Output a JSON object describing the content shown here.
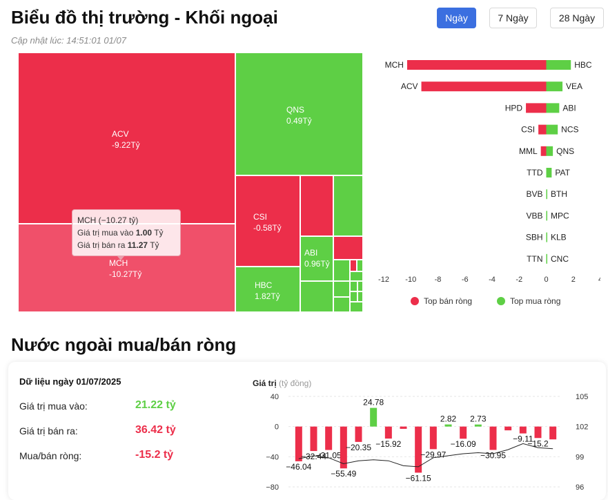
{
  "header": {
    "title": "Biểu đồ thị trường - Khối ngoại",
    "updated": "Cập nhật lúc: 14:51:01 01/07",
    "tabs": [
      "Ngày",
      "7 Ngày",
      "28 Ngày"
    ],
    "active_tab": "Ngày"
  },
  "treemap": {
    "tiles": [
      {
        "label": "ACV",
        "value": "-9.22Tỷ",
        "color": "#ec2e4a"
      },
      {
        "label": "MCH",
        "value": "-10.27Tỷ",
        "color": "#f0506a"
      },
      {
        "label": "QNS",
        "value": "0.49Tỷ",
        "color": "#5ecf45"
      },
      {
        "label": "CSI",
        "value": "-0.58Tỷ",
        "color": "#ec2e4a"
      },
      {
        "label": "ABI",
        "value": "0.96Tỷ",
        "color": "#5ecf45"
      },
      {
        "label": "HBC",
        "value": "1.82Tỷ",
        "color": "#5ecf45"
      }
    ],
    "tooltip": {
      "title": "MCH (−10.27 tỷ)",
      "buy_label": "Giá trị mua vào",
      "buy_value": "1.00",
      "buy_unit": "Tỷ",
      "sell_label": "Giá trị bán ra",
      "sell_value": "11.27",
      "sell_unit": "Tỷ"
    }
  },
  "chart_data": [
    {
      "type": "bar",
      "orientation": "horizontal",
      "sell_categories": [
        "MCH",
        "ACV",
        "HPD",
        "CSI",
        "MML",
        "TTD",
        "BVB",
        "VBB",
        "SBH",
        "TTN"
      ],
      "sell_values": [
        -10.27,
        -9.22,
        -1.5,
        -0.58,
        -0.4,
        0,
        0,
        0,
        0,
        0
      ],
      "buy_categories": [
        "HBC",
        "VEA",
        "ABI",
        "NCS",
        "QNS",
        "PAT",
        "BTH",
        "MPC",
        "KLB",
        "CNC"
      ],
      "buy_values": [
        1.82,
        1.2,
        0.96,
        0.85,
        0.49,
        0.4,
        0.05,
        0.02,
        0.02,
        0.02
      ],
      "xlim": [
        -12,
        4
      ],
      "xticks": [
        "-12",
        "-10",
        "-8",
        "-6",
        "-4",
        "-2",
        "0",
        "2",
        "4"
      ],
      "legend": [
        {
          "name": "Top bán ròng",
          "color": "#ec2e4a"
        },
        {
          "name": "Top mua ròng",
          "color": "#5ecf45"
        }
      ]
    },
    {
      "type": "bar",
      "ylabel": "Giá trị",
      "yunit": "(tỷ đồng)",
      "yticks_left": [
        "40",
        "0",
        "−40",
        "−80"
      ],
      "yticks_right": [
        "105",
        "102",
        "99",
        "96"
      ],
      "ylim": [
        -80,
        40
      ],
      "values": [
        -46.04,
        -32.44,
        -31.05,
        -55.49,
        -20.35,
        24.78,
        -15.92,
        -3,
        -61.15,
        -29.97,
        2.82,
        -16.09,
        2.73,
        -30.95,
        -5,
        -9.11,
        -15.2,
        -17
      ],
      "labels": [
        "−46.04",
        "−32.44",
        "−31.05",
        "−55.49",
        "−20.35",
        "24.78",
        "−15.92",
        "",
        "−61.15",
        "−29.97",
        "2.82",
        "−16.09",
        "2.73",
        "−30.95",
        "",
        "−9.11",
        "−15.2",
        ""
      ],
      "line_values": [
        98.8,
        99.1,
        98.9,
        98.3,
        98.6,
        98.7,
        98.6,
        98.1,
        98.0,
        98.9,
        99.1,
        99.3,
        99.4,
        99.3,
        99.7,
        100.3,
        99.9,
        99.8
      ]
    }
  ],
  "net": {
    "heading": "Nước ngoài mua/bán ròng",
    "date_label": "Dữ liệu ngày 01/07/2025",
    "buy_label": "Giá trị mua vào:",
    "buy_value": "21.22 tỷ",
    "sell_label": "Giá trị bán ra:",
    "sell_value": "36.42 tỷ",
    "net_label": "Mua/bán ròng:",
    "net_value": "-15.2 tỷ",
    "colors": {
      "buy": "#5ecf45",
      "sell": "#ec2e4a"
    }
  }
}
